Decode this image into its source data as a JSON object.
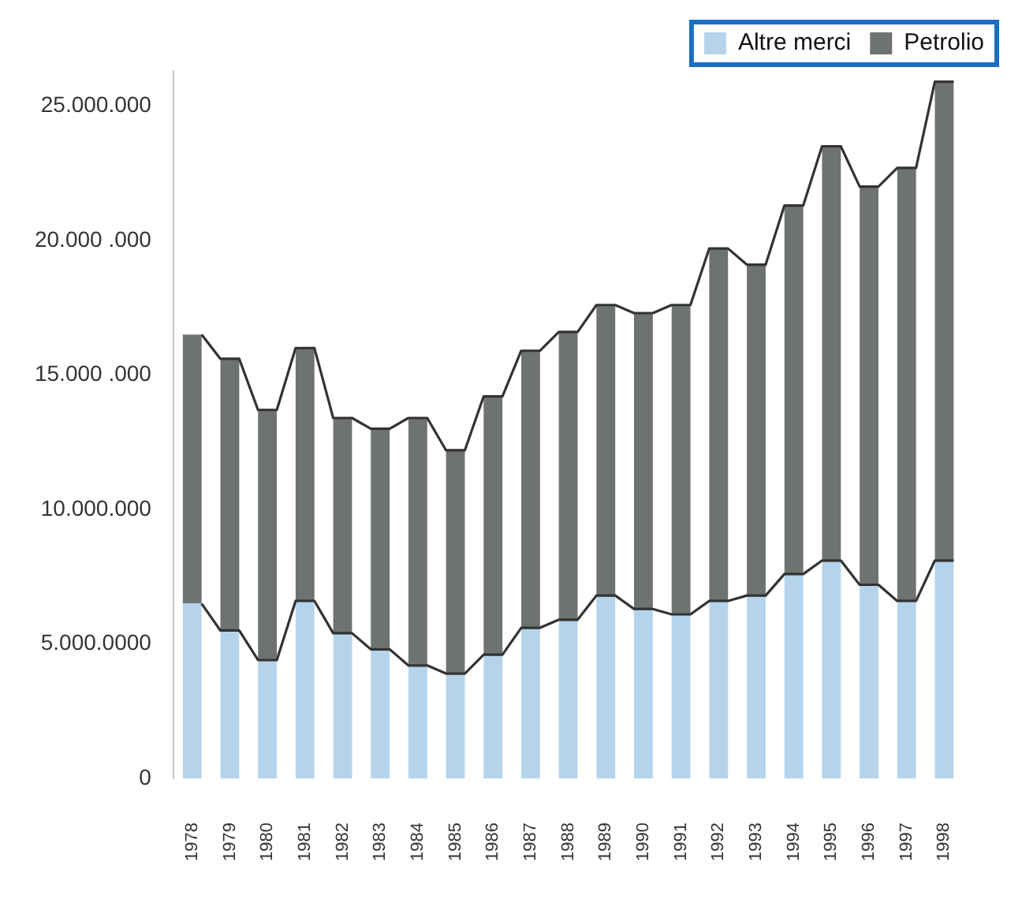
{
  "chart_data": {
    "type": "bar",
    "stacked": true,
    "categories": [
      "1978",
      "1979",
      "1980",
      "1981",
      "1982",
      "1983",
      "1984",
      "1985",
      "1986",
      "1987",
      "1988",
      "1989",
      "1990",
      "1991",
      "1992",
      "1993",
      "1994",
      "1995",
      "1996",
      "1997",
      "1998"
    ],
    "series": [
      {
        "name": "Altre merci",
        "color": "#b5d4ec",
        "values": [
          6500000,
          5500000,
          4400000,
          6600000,
          5400000,
          4800000,
          4200000,
          3900000,
          4600000,
          5600000,
          5900000,
          6800000,
          6300000,
          6100000,
          6600000,
          6800000,
          7600000,
          8100000,
          7200000,
          6600000,
          8100000
        ]
      },
      {
        "name": "Petrolio",
        "color": "#6e7370",
        "values": [
          10000000,
          10100000,
          9300000,
          9400000,
          8000000,
          8200000,
          9200000,
          8300000,
          9600000,
          10300000,
          10700000,
          10800000,
          11000000,
          11500000,
          13100000,
          12300000,
          13700000,
          15400000,
          14800000,
          16100000,
          17800000
        ]
      }
    ],
    "ylim": [
      0,
      26300000
    ],
    "yticks": [
      0,
      {
        "value": 5000000,
        "label": "5.000.0000"
      },
      {
        "value": 10000000,
        "label": "10.000.000"
      },
      {
        "value": 15000000,
        "label": "15.000 .000"
      },
      {
        "value": 20000000,
        "label": "20.000 .000"
      },
      {
        "value": 25000000,
        "label": "25.000.000"
      }
    ],
    "grid": false,
    "legend": "top right"
  }
}
